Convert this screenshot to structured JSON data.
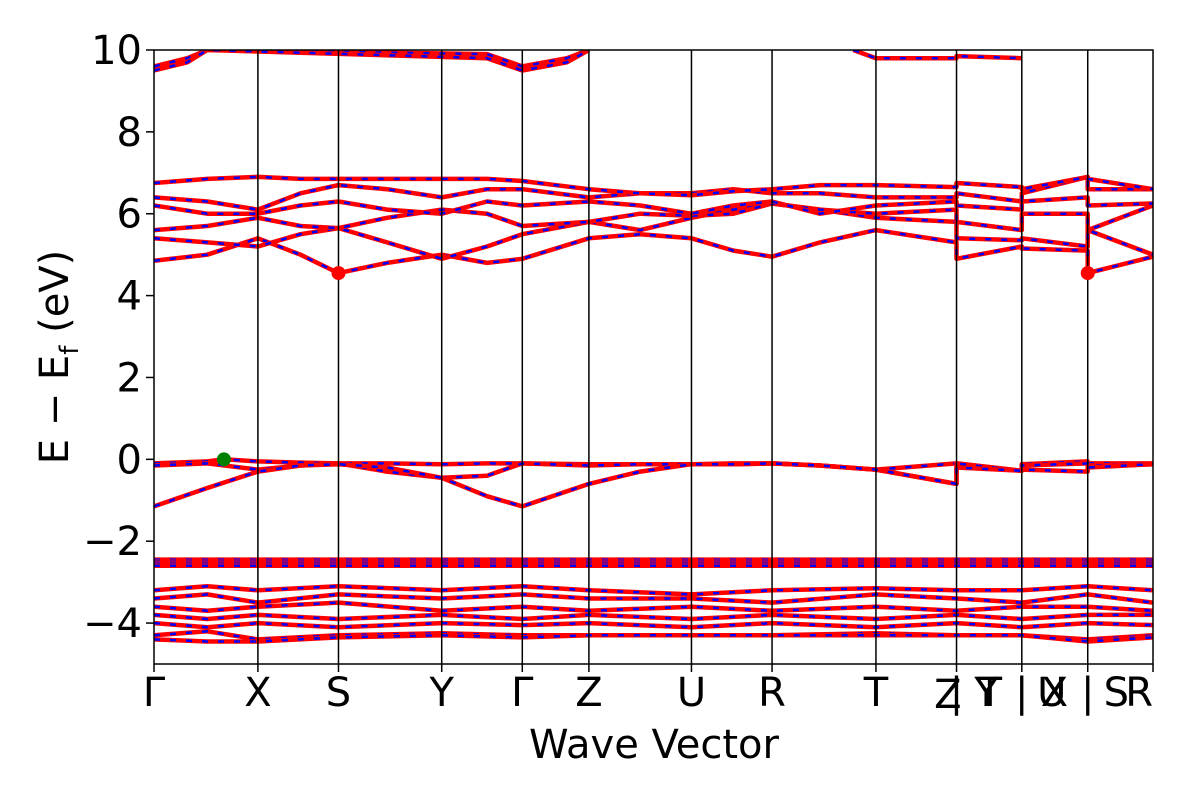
{
  "chart_data": {
    "type": "line",
    "title": "",
    "xlabel": "Wave Vector",
    "ylabel": "E − E_f (eV)",
    "ylabel_main": "E − E",
    "ylabel_sub": "f",
    "ylabel_unit": " (eV)",
    "ylim": [
      -5,
      10
    ],
    "yticks": [
      {
        "value": -4,
        "label": "−4"
      },
      {
        "value": -2,
        "label": "−2"
      },
      {
        "value": 0,
        "label": "0"
      },
      {
        "value": 2,
        "label": "2"
      },
      {
        "value": 4,
        "label": "4"
      },
      {
        "value": 6,
        "label": "6"
      },
      {
        "value": 8,
        "label": "8"
      },
      {
        "value": 10,
        "label": "10"
      }
    ],
    "kpath_labels": [
      "Γ",
      "X",
      "S",
      "Y",
      "Γ",
      "Z",
      "U",
      "R",
      "T",
      "Z | Y",
      "T | U",
      "X | S",
      "R"
    ],
    "x_labels": [
      {
        "label": "Γ",
        "x": 0.0
      },
      {
        "label": "X",
        "x": 1.56
      },
      {
        "label": "S",
        "x": 2.77
      },
      {
        "label": "Y",
        "x": 4.32
      },
      {
        "label": "Γ",
        "x": 5.53
      },
      {
        "label": "Z",
        "x": 6.53
      },
      {
        "label": "U",
        "x": 8.07
      },
      {
        "label": "R",
        "x": 9.28
      },
      {
        "label": "T",
        "x": 10.84
      },
      {
        "label": "Z",
        "x": 11.92
      },
      {
        "label": "|",
        "x": 12.05
      },
      {
        "label": "Y",
        "x": 12.5
      },
      {
        "label": "T",
        "x": 12.55
      },
      {
        "label": "|",
        "x": 13.03
      },
      {
        "label": "U",
        "x": 13.48
      },
      {
        "label": "X",
        "x": 13.52
      },
      {
        "label": "|",
        "x": 14.02
      },
      {
        "label": "S",
        "x": 14.45
      },
      {
        "label": "R",
        "x": 15.0
      }
    ],
    "segment_boundaries": [
      0,
      1.56,
      2.77,
      4.32,
      5.53,
      6.53,
      8.07,
      9.28,
      10.84,
      12.05,
      13.03,
      14.02,
      15.0
    ],
    "xlim": [
      0,
      15.0
    ],
    "series_colors": {
      "spin_up": "#ff0000",
      "spin_down": "#0000ff"
    },
    "markers": [
      {
        "kind": "CBM",
        "x": 2.77,
        "y": 4.55,
        "color": "#ff0000"
      },
      {
        "kind": "CBM",
        "x": 14.02,
        "y": 4.55,
        "color": "#ff0000"
      },
      {
        "kind": "VBM",
        "x": 1.05,
        "y": 0.0,
        "color": "#008000"
      }
    ],
    "bands": [
      {
        "name": "c-high-1",
        "x": [
          0,
          0.5,
          0.8,
          5.0,
          5.53,
          6.2,
          6.53
        ],
        "y": [
          9.6,
          9.8,
          10.0,
          9.9,
          9.6,
          9.8,
          10.0
        ]
      },
      {
        "name": "c-high-2",
        "x": [
          0,
          0.5,
          0.8,
          5.0,
          5.53,
          6.2,
          6.53
        ],
        "y": [
          9.5,
          9.7,
          10.0,
          9.8,
          9.5,
          9.7,
          10.0
        ]
      },
      {
        "name": "c-high-3",
        "x": [
          10.5,
          10.84,
          12.05,
          12.05,
          13.03
        ],
        "y": [
          10.0,
          9.8,
          9.8,
          9.85,
          9.8
        ]
      },
      {
        "name": "c1",
        "x": [
          0,
          0.8,
          1.56,
          2.2,
          2.77,
          3.5,
          4.32,
          5.0,
          5.53,
          6.53,
          7.3,
          8.07,
          8.7,
          9.28,
          10.0,
          10.84,
          12.05,
          12.05,
          13.03,
          13.03,
          14.02,
          14.02,
          15.0
        ],
        "y": [
          4.85,
          5.0,
          5.4,
          5.0,
          4.55,
          4.8,
          5.0,
          4.8,
          4.9,
          5.4,
          5.5,
          5.4,
          5.1,
          4.95,
          5.3,
          5.6,
          5.3,
          4.9,
          5.2,
          5.15,
          5.1,
          4.55,
          4.95
        ]
      },
      {
        "name": "c2",
        "x": [
          0,
          0.8,
          1.56,
          2.2,
          2.77,
          3.5,
          4.32,
          5.0,
          5.53,
          6.53,
          7.3,
          8.07,
          8.7,
          9.28,
          10.0,
          10.84,
          12.05,
          12.05,
          13.03,
          13.03,
          14.02,
          14.02,
          15.0
        ],
        "y": [
          5.4,
          5.3,
          5.2,
          5.5,
          5.65,
          5.3,
          4.9,
          5.2,
          5.5,
          5.8,
          5.6,
          5.9,
          6.1,
          6.25,
          6.1,
          5.9,
          5.8,
          5.4,
          5.35,
          5.4,
          5.2,
          5.6,
          6.2
        ]
      },
      {
        "name": "c3",
        "x": [
          0,
          0.8,
          1.56,
          2.2,
          2.77,
          3.5,
          4.32,
          5.0,
          5.53,
          6.53,
          7.3,
          8.07,
          8.7,
          9.28,
          10.0,
          10.84,
          12.05,
          12.05,
          13.03,
          13.03,
          14.02,
          14.02,
          15.0
        ],
        "y": [
          5.6,
          5.7,
          5.9,
          5.7,
          5.65,
          5.9,
          6.1,
          6.0,
          5.7,
          5.8,
          6.0,
          5.95,
          6.0,
          6.25,
          6.1,
          6.0,
          6.1,
          5.8,
          5.6,
          6.0,
          6.0,
          5.6,
          5.0
        ]
      },
      {
        "name": "c4",
        "x": [
          0,
          0.8,
          1.56,
          2.2,
          2.77,
          3.5,
          4.32,
          5.0,
          5.53,
          6.53,
          7.3,
          8.07,
          8.7,
          9.28,
          10.0,
          10.84,
          12.05,
          12.05,
          13.03,
          13.03,
          14.02,
          14.02,
          15.0
        ],
        "y": [
          6.2,
          6.0,
          6.0,
          6.2,
          6.3,
          6.1,
          6.0,
          6.3,
          6.2,
          6.3,
          6.2,
          6.0,
          6.2,
          6.3,
          6.0,
          6.2,
          6.3,
          6.2,
          6.1,
          6.3,
          6.4,
          6.2,
          6.25
        ]
      },
      {
        "name": "c5",
        "x": [
          0,
          0.8,
          1.56,
          2.2,
          2.77,
          3.5,
          4.32,
          5.0,
          5.53,
          6.53,
          7.3,
          8.07,
          8.7,
          9.28,
          10.0,
          10.84,
          12.05,
          12.05,
          13.03,
          13.03,
          14.02,
          14.02,
          15.0
        ],
        "y": [
          6.4,
          6.3,
          6.1,
          6.5,
          6.7,
          6.6,
          6.4,
          6.6,
          6.6,
          6.4,
          6.5,
          6.5,
          6.6,
          6.5,
          6.5,
          6.4,
          6.4,
          6.5,
          6.3,
          6.5,
          6.9,
          6.6,
          6.6
        ]
      },
      {
        "name": "c6",
        "x": [
          0,
          0.8,
          1.56,
          2.2,
          2.77,
          3.5,
          4.32,
          5.0,
          5.53,
          6.53,
          7.3,
          8.07,
          8.7,
          9.28,
          10.0,
          10.84,
          12.05,
          12.05,
          13.03,
          13.03,
          14.02,
          14.02,
          15.0
        ],
        "y": [
          6.75,
          6.85,
          6.9,
          6.85,
          6.85,
          6.85,
          6.85,
          6.85,
          6.8,
          6.6,
          6.5,
          6.45,
          6.55,
          6.6,
          6.7,
          6.7,
          6.65,
          6.75,
          6.65,
          6.6,
          6.9,
          6.85,
          6.6
        ]
      },
      {
        "name": "v1",
        "x": [
          0,
          0.8,
          1.05,
          1.56,
          2.2,
          2.77,
          3.5,
          4.32,
          5.0,
          5.53,
          6.53,
          7.3,
          8.07,
          8.7,
          9.28,
          10.0,
          10.84,
          12.05,
          12.05,
          13.03,
          13.03,
          14.02,
          14.02,
          15.0
        ],
        "y": [
          -0.1,
          -0.05,
          0.0,
          -0.05,
          -0.08,
          -0.1,
          -0.1,
          -0.12,
          -0.1,
          -0.1,
          -0.12,
          -0.12,
          -0.12,
          -0.1,
          -0.1,
          -0.15,
          -0.25,
          -0.1,
          -0.1,
          -0.28,
          -0.12,
          -0.05,
          -0.1,
          -0.1
        ]
      },
      {
        "name": "v2",
        "x": [
          0,
          0.8,
          1.56,
          2.2,
          2.77,
          3.5,
          4.32,
          5.0,
          5.53,
          6.53,
          7.3,
          8.07,
          8.7,
          9.28,
          10.0,
          10.84,
          12.05,
          12.05,
          13.03,
          13.03,
          14.02,
          14.02,
          15.0
        ],
        "y": [
          -0.15,
          -0.1,
          -0.25,
          -0.15,
          -0.1,
          -0.3,
          -0.45,
          -0.4,
          -0.1,
          -0.15,
          -0.12,
          -0.12,
          -0.12,
          -0.1,
          -0.15,
          -0.25,
          -0.6,
          -0.1,
          -0.28,
          -0.15,
          -0.1,
          -0.15,
          -0.12
        ]
      },
      {
        "name": "v3",
        "x": [
          0,
          0.8,
          1.56,
          2.2,
          2.77,
          3.5,
          4.32,
          5.0,
          5.53,
          6.53,
          7.3,
          8.07,
          8.7,
          9.28,
          10.0,
          10.84,
          12.05,
          12.05,
          13.03,
          13.03,
          14.02,
          14.02,
          15.0
        ],
        "y": [
          -1.15,
          -0.7,
          -0.3,
          -0.15,
          -0.12,
          -0.2,
          -0.45,
          -0.9,
          -1.15,
          -0.6,
          -0.3,
          -0.12,
          -0.12,
          -0.1,
          -0.15,
          -0.25,
          -0.6,
          -0.2,
          -0.28,
          -0.25,
          -0.3,
          -0.2,
          -0.12
        ]
      },
      {
        "name": "d1",
        "x": [
          0,
          15.0
        ],
        "y": [
          -2.45,
          -2.45
        ]
      },
      {
        "name": "d2",
        "x": [
          0,
          15.0
        ],
        "y": [
          -2.5,
          -2.5
        ]
      },
      {
        "name": "d3",
        "x": [
          0,
          15.0
        ],
        "y": [
          -2.55,
          -2.55
        ]
      },
      {
        "name": "d4",
        "x": [
          0,
          15.0
        ],
        "y": [
          -2.6,
          -2.6
        ]
      },
      {
        "name": "s1",
        "x": [
          0,
          0.8,
          1.56,
          2.77,
          4.32,
          5.53,
          6.53,
          8.07,
          9.28,
          10.84,
          12.05,
          13.03,
          14.02,
          15.0
        ],
        "y": [
          -3.2,
          -3.1,
          -3.2,
          -3.1,
          -3.2,
          -3.1,
          -3.2,
          -3.3,
          -3.2,
          -3.15,
          -3.2,
          -3.2,
          -3.1,
          -3.2
        ]
      },
      {
        "name": "s2",
        "x": [
          0,
          0.8,
          1.56,
          2.77,
          4.32,
          5.53,
          6.53,
          8.07,
          9.28,
          10.84,
          12.05,
          13.03,
          14.02,
          15.0
        ],
        "y": [
          -3.4,
          -3.3,
          -3.5,
          -3.3,
          -3.4,
          -3.3,
          -3.4,
          -3.4,
          -3.5,
          -3.3,
          -3.4,
          -3.5,
          -3.3,
          -3.5
        ]
      },
      {
        "name": "s3",
        "x": [
          0,
          0.8,
          1.56,
          2.77,
          4.32,
          5.53,
          6.53,
          8.07,
          9.28,
          10.84,
          12.05,
          13.03,
          14.02,
          15.0
        ],
        "y": [
          -3.6,
          -3.7,
          -3.6,
          -3.5,
          -3.7,
          -3.6,
          -3.7,
          -3.6,
          -3.7,
          -3.6,
          -3.7,
          -3.6,
          -3.6,
          -3.7
        ]
      },
      {
        "name": "s4",
        "x": [
          0,
          0.8,
          1.56,
          2.77,
          4.32,
          5.53,
          6.53,
          8.07,
          9.28,
          10.84,
          12.05,
          13.03,
          14.02,
          15.0
        ],
        "y": [
          -3.8,
          -3.9,
          -3.8,
          -3.9,
          -3.8,
          -3.9,
          -3.8,
          -3.9,
          -3.8,
          -3.9,
          -3.8,
          -3.9,
          -3.8,
          -3.8
        ]
      },
      {
        "name": "s5",
        "x": [
          0,
          0.8,
          1.56,
          2.77,
          4.32,
          5.53,
          6.53,
          8.07,
          9.28,
          10.84,
          12.05,
          13.03,
          14.02,
          15.0
        ],
        "y": [
          -4.0,
          -4.1,
          -4.0,
          -4.1,
          -4.0,
          -4.05,
          -4.0,
          -4.1,
          -4.0,
          -4.1,
          -4.0,
          -4.1,
          -4.0,
          -4.05
        ]
      },
      {
        "name": "s6",
        "x": [
          0,
          0.8,
          1.56,
          2.77,
          4.32,
          5.53,
          6.53,
          8.07,
          9.28,
          10.84,
          12.05,
          13.03,
          14.02,
          15.0
        ],
        "y": [
          -4.3,
          -4.2,
          -4.4,
          -4.3,
          -4.25,
          -4.3,
          -4.3,
          -4.3,
          -4.3,
          -4.25,
          -4.3,
          -4.3,
          -4.4,
          -4.3
        ]
      },
      {
        "name": "s7",
        "x": [
          0,
          0.8,
          1.56,
          2.77,
          4.32,
          5.53,
          6.53,
          8.07,
          9.28,
          10.84,
          12.05,
          13.03,
          14.02,
          15.0
        ],
        "y": [
          -4.4,
          -4.45,
          -4.45,
          -4.35,
          -4.3,
          -4.35,
          -4.3,
          -4.3,
          -4.3,
          -4.3,
          -4.3,
          -4.3,
          -4.45,
          -4.35
        ]
      }
    ]
  }
}
